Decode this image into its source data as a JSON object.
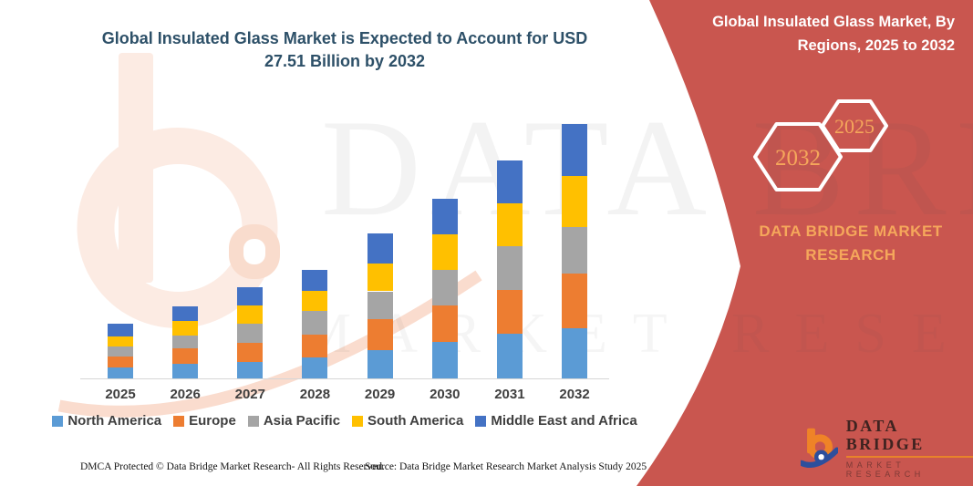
{
  "title": "Global Insulated Glass Market is Expected to Account for USD 27.51 Billion by 2032",
  "banner": {
    "heading_line1": "Global Insulated Glass Market, By",
    "heading_line2": "Regions, 2025 to 2032",
    "hexagon_left": "2032",
    "hexagon_right": "2025",
    "brand_line1": "DATA BRIDGE MARKET",
    "brand_line2": "RESEARCH",
    "background_color": "#c9564f",
    "accent_text_color": "#f5a75b"
  },
  "logo": {
    "title": "DATA BRIDGE",
    "subtitle": "MARKET RESEARCH"
  },
  "watermarks": {
    "line1": "DATA BRIDGE",
    "line2": "MARKET RESEARCH"
  },
  "footer": {
    "left": "DMCA Protected © Data Bridge Market Research-  All Rights Reserved.",
    "right": "Source: Data Bridge Market Research  Market Analysis Study 2025"
  },
  "chart_data": {
    "type": "bar",
    "stacked": true,
    "title": "Global Insulated Glass Market is Expected to Account for USD 27.51 Billion by 2032",
    "unit": "USD Billion",
    "categories": [
      "2025",
      "2026",
      "2027",
      "2028",
      "2029",
      "2030",
      "2031",
      "2032"
    ],
    "series": [
      {
        "name": "North America",
        "color": "#5b9bd5",
        "values": [
          1.22,
          1.62,
          1.81,
          2.31,
          3.04,
          3.96,
          4.86,
          5.45
        ]
      },
      {
        "name": "Europe",
        "color": "#ed7d31",
        "values": [
          1.16,
          1.59,
          2.05,
          2.38,
          3.34,
          3.93,
          4.73,
          5.85
        ]
      },
      {
        "name": "Asia Pacific",
        "color": "#a5a5a5",
        "values": [
          1.06,
          1.39,
          2.05,
          2.58,
          3.04,
          3.8,
          4.73,
          5.12
        ]
      },
      {
        "name": "South America",
        "color": "#ffc000",
        "values": [
          1.09,
          1.65,
          1.98,
          2.21,
          3.04,
          3.85,
          4.59,
          5.45
        ]
      },
      {
        "name": "Middle East and Africa",
        "color": "#4472c4",
        "values": [
          1.42,
          1.59,
          1.98,
          2.25,
          3.24,
          3.9,
          4.66,
          5.64
        ]
      }
    ],
    "totals": [
      5.95,
      7.84,
      9.87,
      11.73,
      15.7,
      19.44,
      23.57,
      27.51
    ],
    "ylim": [
      0,
      28
    ],
    "y_axis_visible": false,
    "gridlines": false,
    "legend_position": "bottom"
  }
}
